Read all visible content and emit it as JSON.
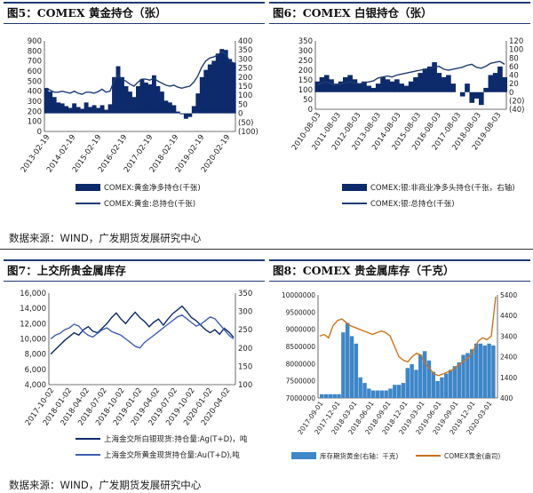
{
  "headers": {
    "fig5": "图5：COMEX 黄金持仓（张）",
    "fig6": "图6：COMEX 白银持仓（张）",
    "fig7": "图7：上交所贵金属库存",
    "fig8": "图8：COMEX 贵金属库存（千克）"
  },
  "source_top": "数据来源：WIND，广发期货发展研究中心",
  "source_bottom": "数据来源：WIND，广发期货发展研究中心",
  "colors": {
    "navy": "#1f3b73",
    "darkblue": "#0d2a6b",
    "lightblue": "#3e86c8",
    "orange": "#c8741d"
  },
  "chart_data": [
    {
      "id": "fig5",
      "type": "area",
      "left_axis": {
        "ticks": [
          "900",
          "800",
          "700",
          "600",
          "500",
          "400",
          "300",
          "200",
          "100",
          "0"
        ],
        "range": [
          0,
          900
        ]
      },
      "right_axis": {
        "ticks": [
          "400",
          "350",
          "300",
          "250",
          "200",
          "150",
          "100",
          "50",
          "0",
          "(50)",
          "(100)"
        ],
        "range": [
          -100,
          400
        ]
      },
      "x_ticks": [
        "2013-02-19",
        "2014-02-19",
        "2015-02-19",
        "2016-02-19",
        "2017-02-19",
        "2018-02-19",
        "2019-02-19",
        "2020-02-19"
      ],
      "series": [
        {
          "name": "COMEX:黄金净多持仓(千张)",
          "axis": "right",
          "style": "area",
          "values": [
            140,
            120,
            90,
            60,
            55,
            40,
            30,
            55,
            35,
            25,
            60,
            35,
            45,
            30,
            45,
            20,
            50,
            200,
            260,
            200,
            150,
            120,
            90,
            150,
            190,
            170,
            160,
            210,
            150,
            120,
            70,
            60,
            45,
            10,
            -5,
            -30,
            -20,
            40,
            110,
            200,
            240,
            270,
            290,
            330,
            355,
            350,
            300,
            280
          ]
        },
        {
          "name": "COMEX:黄金:总持仓(千张)",
          "axis": "left",
          "style": "line",
          "values": [
            430,
            410,
            390,
            390,
            400,
            390,
            380,
            400,
            380,
            370,
            390,
            390,
            380,
            395,
            420,
            390,
            400,
            500,
            560,
            520,
            500,
            470,
            450,
            490,
            520,
            520,
            510,
            530,
            500,
            480,
            460,
            450,
            460,
            440,
            430,
            440,
            450,
            490,
            550,
            640,
            700,
            730,
            740,
            760,
            790,
            770,
            700,
            680
          ]
        }
      ]
    },
    {
      "id": "fig6",
      "type": "area",
      "left_axis": {
        "ticks": [
          "350",
          "300",
          "250",
          "200",
          "150",
          "100",
          "50",
          "0"
        ],
        "range": [
          0,
          350
        ]
      },
      "right_axis": {
        "ticks": [
          "120",
          "100",
          "80",
          "60",
          "40",
          "20",
          "0",
          "(20)",
          "(40)"
        ],
        "range": [
          -40,
          120
        ]
      },
      "x_ticks": [
        "2010-08-03",
        "2011-08-03",
        "2012-08-03",
        "2013-08-03",
        "2014-08-03",
        "2015-08-03",
        "2016-08-03",
        "2017-08-03",
        "2018-08-03",
        "2019-08-03"
      ],
      "series": [
        {
          "name": "COMEX:银:非商业净多头持仓(千张，右轴)",
          "axis": "right",
          "style": "area",
          "values": [
            25,
            35,
            40,
            30,
            20,
            25,
            35,
            40,
            30,
            20,
            25,
            15,
            10,
            20,
            35,
            30,
            25,
            30,
            20,
            15,
            25,
            35,
            45,
            55,
            60,
            70,
            45,
            35,
            40,
            20,
            0,
            -10,
            20,
            -25,
            -15,
            -30,
            10,
            40,
            45,
            60,
            35
          ]
        },
        {
          "name": "COMEX:银:总持仓(千张)",
          "axis": "left",
          "style": "line",
          "values": [
            125,
            135,
            140,
            130,
            125,
            130,
            135,
            140,
            135,
            130,
            135,
            140,
            145,
            160,
            165,
            170,
            165,
            175,
            180,
            185,
            190,
            195,
            200,
            205,
            210,
            215,
            220,
            205,
            200,
            205,
            210,
            215,
            225,
            230,
            215,
            210,
            220,
            235,
            240,
            245,
            230
          ]
        }
      ]
    },
    {
      "id": "fig7",
      "type": "line",
      "left_axis": {
        "ticks": [
          "16,000",
          "14,000",
          "12,000",
          "10,000",
          "8,000",
          "6,000",
          "4,000"
        ],
        "range": [
          4000,
          16000
        ]
      },
      "right_axis": {
        "ticks": [
          "350",
          "300",
          "250",
          "200",
          "150",
          "100"
        ],
        "range": [
          100,
          350
        ]
      },
      "x_ticks": [
        "2017-10-02",
        "2018-01-02",
        "2018-04-02",
        "2018-07-02",
        "2018-10-02",
        "2019-01-02",
        "2019-04-02",
        "2019-07-02",
        "2019-10-02",
        "2020-01-02",
        "2020-04-02"
      ],
      "series": [
        {
          "name": "上海金交所白银现货:持仓量:Ag(T+D)，吨",
          "axis": "left",
          "color": "#0d2a6b",
          "values": [
            8000,
            8600,
            9200,
            9800,
            10300,
            10800,
            10500,
            11200,
            11600,
            11000,
            10800,
            11400,
            12000,
            12800,
            13400,
            12600,
            12000,
            12800,
            13500,
            12800,
            12300,
            11600,
            12200,
            12600,
            11800,
            12600,
            13300,
            13800,
            14300,
            13600,
            12800,
            12400,
            11800,
            11200,
            10800,
            11200,
            10600,
            11400,
            10900,
            10200
          ]
        },
        {
          "name": "上海金交所黄金现货持仓量:Au(T+D),吨",
          "axis": "right",
          "color": "#3f5fb5",
          "values": [
            225,
            235,
            240,
            250,
            255,
            265,
            260,
            245,
            235,
            230,
            240,
            250,
            255,
            245,
            240,
            235,
            225,
            215,
            205,
            200,
            215,
            225,
            235,
            245,
            255,
            265,
            275,
            285,
            290,
            280,
            270,
            260,
            265,
            275,
            285,
            280,
            265,
            250,
            235,
            225
          ]
        }
      ]
    },
    {
      "id": "fig8",
      "type": "bar",
      "left_axis": {
        "ticks": [
          "10000000",
          "9500000",
          "9000000",
          "8500000",
          "8000000",
          "7500000",
          "7000000"
        ],
        "range": [
          7000000,
          10000000
        ]
      },
      "right_axis": {
        "ticks": [
          "5400",
          "4400",
          "3400",
          "2400",
          "1400",
          "400"
        ],
        "range": [
          400,
          5900
        ]
      },
      "x_ticks": [
        "2017-09-01",
        "2017-12-01",
        "2018-03-01",
        "2018-06-01",
        "2018-09-01",
        "2018-12-01",
        "2019-03-01",
        "2019-06-01",
        "2019-09-01",
        "2019-12-01",
        "2020-03-01"
      ],
      "series": [
        {
          "name": "库存期货黄金(右轴：千克)",
          "axis": "right",
          "style": "bar",
          "color": "#3e86c8",
          "values": [
            600,
            600,
            600,
            600,
            600,
            3900,
            4400,
            3700,
            3300,
            1500,
            1200,
            900,
            800,
            800,
            800,
            800,
            900,
            1100,
            1100,
            1200,
            2000,
            2200,
            1900,
            2700,
            2900,
            2400,
            1800,
            1300,
            1500,
            1700,
            1900,
            2100,
            2300,
            2700,
            2800,
            3000,
            3300,
            3300,
            3200,
            3300,
            3200
          ]
        },
        {
          "name": "COMEX黄金(盎司)",
          "axis": "left",
          "style": "line",
          "color": "#c8741d",
          "values": [
            8800000,
            8850000,
            8750000,
            9100000,
            9250000,
            9300000,
            9200000,
            9100000,
            9050000,
            9000000,
            8950000,
            8900000,
            8850000,
            8900000,
            8950000,
            8900000,
            8800000,
            8500000,
            8200000,
            8100000,
            8050000,
            8200000,
            8300000,
            8250000,
            8000000,
            7850000,
            7700000,
            7650000,
            7700000,
            7750000,
            7800000,
            7900000,
            8000000,
            8100000,
            8200000,
            8400000,
            8650000,
            8750000,
            8700000,
            8800000,
            9950000
          ]
        }
      ]
    }
  ]
}
